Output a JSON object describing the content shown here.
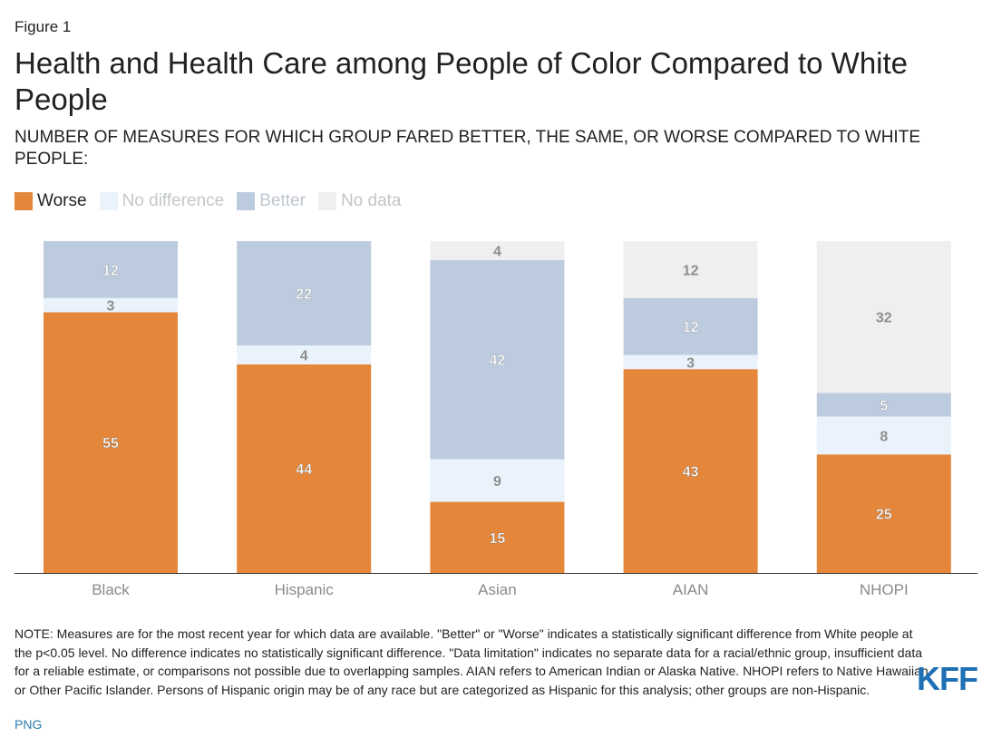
{
  "figure_label": "Figure 1",
  "colors": {
    "worse": "#e5873a",
    "no_difference": "#eaf3fb",
    "better": "#bccbde",
    "no_data": "#efefef",
    "kff_blue": "#1f6fb5"
  },
  "chart_data": {
    "type": "bar",
    "stacked": true,
    "title": "Health and Health Care among People of Color Compared to White People",
    "subtitle": "NUMBER OF MEASURES FOR WHICH GROUP FARED BETTER, THE SAME, OR WORSE COMPARED TO WHITE PEOPLE:",
    "categories": [
      "Black",
      "Hispanic",
      "Asian",
      "AIAN",
      "NHOPI"
    ],
    "series": [
      {
        "name": "Worse",
        "values": [
          55,
          44,
          15,
          43,
          25
        ]
      },
      {
        "name": "No difference",
        "values": [
          3,
          4,
          9,
          3,
          8
        ]
      },
      {
        "name": "Better",
        "values": [
          12,
          22,
          42,
          12,
          5
        ]
      },
      {
        "name": "No data",
        "values": [
          0,
          0,
          4,
          12,
          32
        ]
      }
    ],
    "legend_position": "top-left",
    "grid": false
  },
  "note": "NOTE: Measures are for the most recent year for which data are available. \"Better\" or \"Worse\" indicates a statistically significant difference from White people at the p<0.05 level. No difference indicates no statistically significant difference. \"Data limitation\" indicates no separate data for a racial/ethnic group, insufficient data for a reliable estimate, or comparisons not possible due to overlapping samples. AIAN refers to American Indian or Alaska Native. NHOPI refers to Native Hawaiian or Other Pacific Islander. Persons of Hispanic origin may be of any race but are categorized as Hispanic for this analysis; other groups are non-Hispanic.",
  "png_link": "PNG",
  "logo_text": "KFF"
}
